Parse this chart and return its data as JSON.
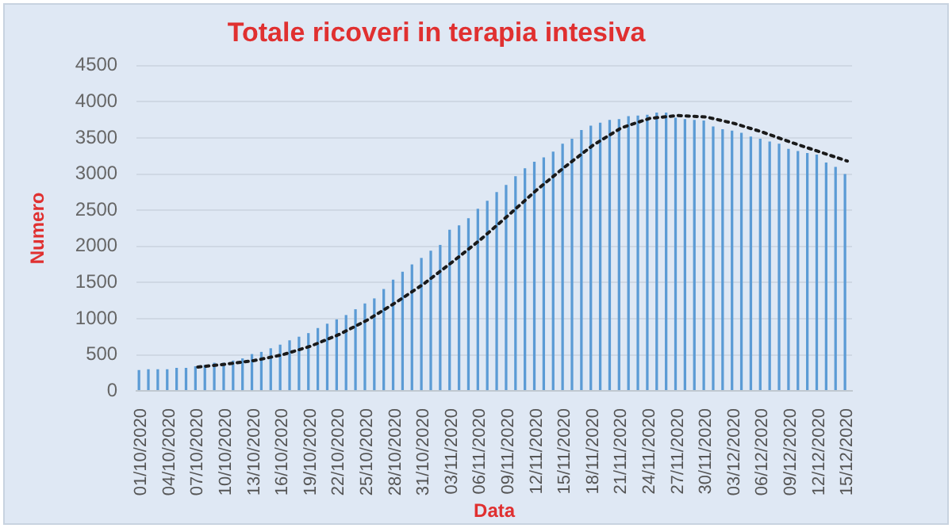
{
  "chart_data": {
    "type": "bar",
    "title": "Totale ricoveri in terapia intesiva",
    "xlabel": "Data",
    "ylabel": "Numero",
    "categories": [
      "01/10/2020",
      null,
      null,
      "04/10/2020",
      null,
      null,
      "07/10/2020",
      null,
      null,
      "10/10/2020",
      null,
      null,
      "13/10/2020",
      null,
      null,
      "16/10/2020",
      null,
      null,
      "19/10/2020",
      null,
      null,
      "22/10/2020",
      null,
      null,
      "25/10/2020",
      null,
      null,
      "28/10/2020",
      null,
      null,
      "31/10/2020",
      null,
      null,
      "03/11/2020",
      null,
      null,
      "06/11/2020",
      null,
      null,
      "09/11/2020",
      null,
      null,
      "12/11/2020",
      null,
      null,
      "15/11/2020",
      null,
      null,
      "18/11/2020",
      null,
      null,
      "21/11/2020",
      null,
      null,
      "24/11/2020",
      null,
      null,
      "27/11/2020",
      null,
      null,
      "30/11/2020",
      null,
      null,
      "03/12/2020",
      null,
      null,
      "06/12/2020",
      null,
      null,
      "09/12/2020",
      null,
      null,
      "12/12/2020",
      null,
      null,
      "15/12/2020"
    ],
    "series": [
      {
        "color": "#5b9bd5",
        "values": [
          290,
          300,
          300,
          300,
          320,
          320,
          340,
          360,
          390,
          390,
          420,
          450,
          510,
          540,
          590,
          640,
          700,
          750,
          800,
          870,
          930,
          990,
          1050,
          1130,
          1210,
          1280,
          1410,
          1540,
          1650,
          1750,
          1840,
          1940,
          2020,
          2230,
          2290,
          2390,
          2520,
          2630,
          2750,
          2850,
          2970,
          3080,
          3170,
          3230,
          3310,
          3420,
          3490,
          3610,
          3670,
          3710,
          3750,
          3760,
          3800,
          3810,
          3820,
          3850,
          3850,
          3780,
          3760,
          3750,
          3740,
          3660,
          3620,
          3600,
          3570,
          3520,
          3490,
          3450,
          3420,
          3350,
          3320,
          3290,
          3270,
          3160,
          3100,
          3000
        ]
      },
      {
        "type": "line",
        "color": "#1a1a1a",
        "line_style": "dotted",
        "marker": "none",
        "x": [
          "07/10/2020",
          "10/10/2020",
          "13/10/2020",
          "16/10/2020",
          "19/10/2020",
          "22/10/2020",
          "25/10/2020",
          "28/10/2020",
          "31/10/2020",
          "03/11/2020",
          "06/11/2020",
          "09/11/2020",
          "12/11/2020",
          "15/11/2020",
          "18/11/2020",
          "21/11/2020",
          "24/11/2020",
          "27/11/2020",
          "30/11/2020",
          "03/12/2020",
          "06/12/2020",
          "09/12/2020",
          "12/12/2020",
          "15/12/2020"
        ],
        "values": [
          330,
          370,
          420,
          500,
          620,
          780,
          980,
          1220,
          1480,
          1780,
          2090,
          2430,
          2780,
          3100,
          3400,
          3640,
          3770,
          3810,
          3790,
          3700,
          3580,
          3440,
          3310,
          3180
        ]
      }
    ],
    "ylim": [
      0,
      4500
    ],
    "yticks": [
      0,
      500,
      1000,
      1500,
      2000,
      2500,
      3000,
      3500,
      4000,
      4500
    ],
    "grid": "y",
    "legend": false
  }
}
